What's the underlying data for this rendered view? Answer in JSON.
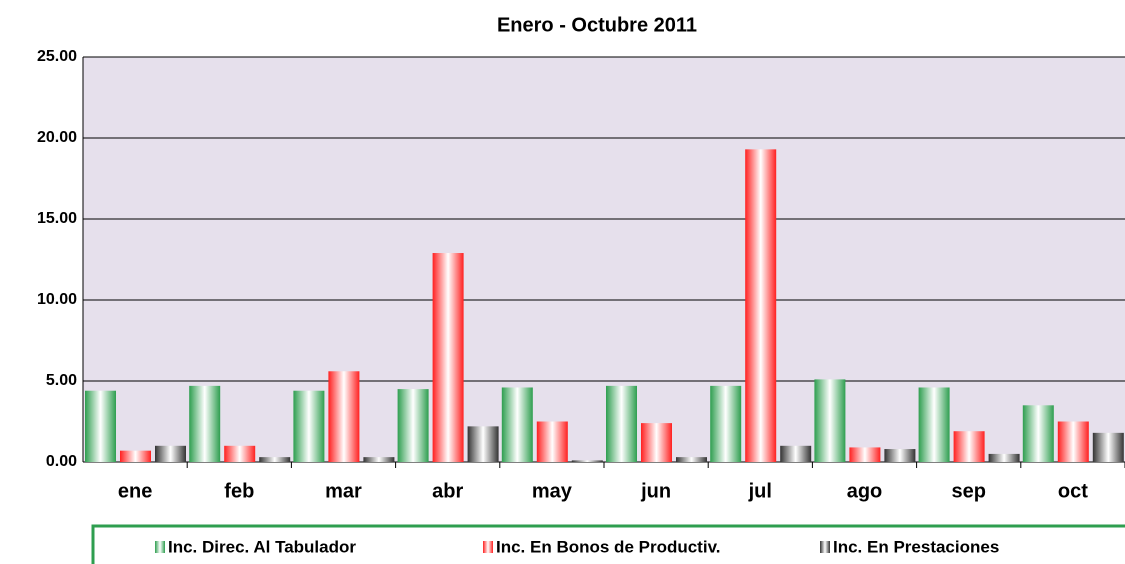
{
  "chart_data": {
    "type": "bar",
    "title": "Enero - Octubre 2011",
    "categories": [
      "ene",
      "feb",
      "mar",
      "abr",
      "may",
      "jun",
      "jul",
      "ago",
      "sep",
      "oct"
    ],
    "series": [
      {
        "name": "Inc. Direc. Al Tabulador",
        "color": "#2e9e4f",
        "values": [
          4.4,
          4.7,
          4.4,
          4.5,
          4.6,
          4.7,
          4.7,
          5.1,
          4.6,
          3.5
        ]
      },
      {
        "name": "Inc. En Bonos de Productiv.",
        "color": "#ff2020",
        "values": [
          0.7,
          1.0,
          5.6,
          12.9,
          2.5,
          2.4,
          19.3,
          0.9,
          1.9,
          2.5
        ]
      },
      {
        "name": "Inc. En Prestaciones",
        "color": "#333333",
        "values": [
          1.0,
          0.3,
          0.3,
          2.2,
          0.1,
          0.3,
          1.0,
          0.8,
          0.5,
          1.8
        ]
      }
    ],
    "ylim": [
      0,
      25
    ],
    "yticks": [
      {
        "value": 0,
        "label": "0.00"
      },
      {
        "value": 5,
        "label": "5.00"
      },
      {
        "value": 10,
        "label": "10.00"
      },
      {
        "value": 15,
        "label": "15.00"
      },
      {
        "value": 20,
        "label": "20.00"
      },
      {
        "value": 25,
        "label": "25.00"
      }
    ],
    "grid": true,
    "legend": "bottom"
  }
}
